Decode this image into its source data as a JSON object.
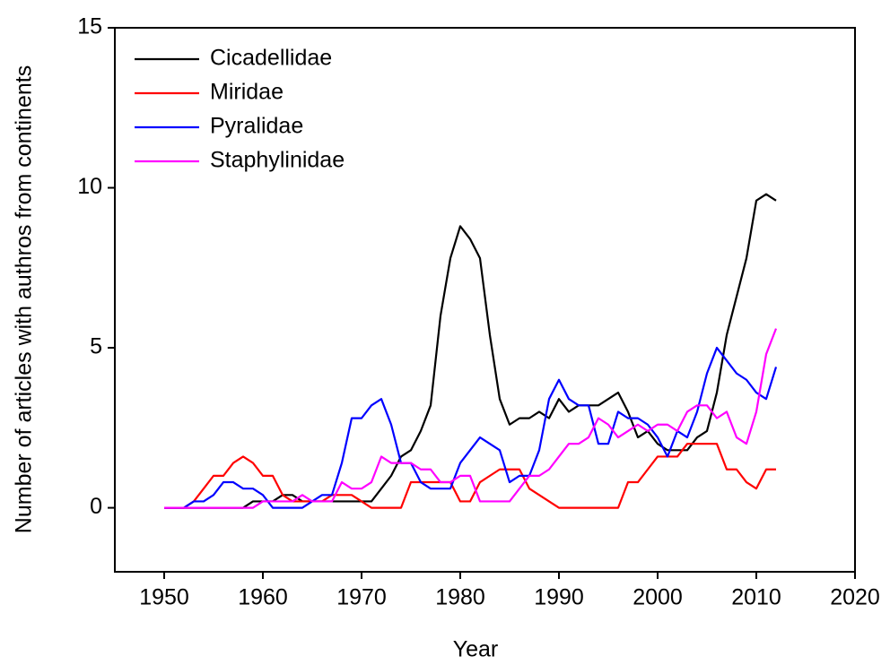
{
  "chart_data": {
    "type": "line",
    "xlabel": "Year",
    "ylabel": "Number of articles with authros from continents",
    "x": [
      1950,
      1951,
      1952,
      1953,
      1954,
      1955,
      1956,
      1957,
      1958,
      1959,
      1960,
      1961,
      1962,
      1963,
      1964,
      1965,
      1966,
      1967,
      1968,
      1969,
      1970,
      1971,
      1972,
      1973,
      1974,
      1975,
      1976,
      1977,
      1978,
      1979,
      1980,
      1981,
      1982,
      1983,
      1984,
      1985,
      1986,
      1987,
      1988,
      1989,
      1990,
      1991,
      1992,
      1993,
      1994,
      1995,
      1996,
      1997,
      1998,
      1999,
      2000,
      2001,
      2002,
      2003,
      2004,
      2005,
      2006,
      2007,
      2008,
      2009,
      2010,
      2011,
      2012
    ],
    "series": [
      {
        "name": "Cicadellidae",
        "color": "#000000",
        "values": [
          0,
          0,
          0,
          0,
          0,
          0,
          0,
          0,
          0,
          0.2,
          0.2,
          0.2,
          0.4,
          0.4,
          0.2,
          0.2,
          0.2,
          0.2,
          0.2,
          0.2,
          0.2,
          0.2,
          0.6,
          1.0,
          1.6,
          1.8,
          2.4,
          3.2,
          6.0,
          7.8,
          8.8,
          8.4,
          7.8,
          5.4,
          3.4,
          2.6,
          2.8,
          2.8,
          3.0,
          2.8,
          3.4,
          3.0,
          3.2,
          3.2,
          3.2,
          3.4,
          3.6,
          3.0,
          2.2,
          2.4,
          2.0,
          1.8,
          1.8,
          1.8,
          2.2,
          2.4,
          3.6,
          5.4,
          6.6,
          7.8,
          9.6,
          9.8,
          9.6
        ]
      },
      {
        "name": "Miridae",
        "color": "#ff0000",
        "values": [
          0,
          0,
          0,
          0.2,
          0.6,
          1.0,
          1.0,
          1.4,
          1.6,
          1.4,
          1.0,
          1.0,
          0.4,
          0.2,
          0.2,
          0.2,
          0.2,
          0.4,
          0.4,
          0.4,
          0.2,
          0,
          0,
          0,
          0,
          0.8,
          0.8,
          0.8,
          0.8,
          0.8,
          0.2,
          0.2,
          0.8,
          1.0,
          1.2,
          1.2,
          1.2,
          0.6,
          0.4,
          0.2,
          0,
          0,
          0,
          0,
          0,
          0,
          0,
          0.8,
          0.8,
          1.2,
          1.6,
          1.6,
          1.6,
          2.0,
          2.0,
          2.0,
          2.0,
          1.2,
          1.2,
          0.8,
          0.6,
          1.2,
          1.2
        ]
      },
      {
        "name": "Pyralidae",
        "color": "#0000ff",
        "values": [
          0,
          0,
          0,
          0.2,
          0.2,
          0.4,
          0.8,
          0.8,
          0.6,
          0.6,
          0.4,
          0,
          0,
          0,
          0,
          0.2,
          0.4,
          0.4,
          1.4,
          2.8,
          2.8,
          3.2,
          3.4,
          2.6,
          1.4,
          1.4,
          0.8,
          0.6,
          0.6,
          0.6,
          1.4,
          1.8,
          2.2,
          2.0,
          1.8,
          0.8,
          1.0,
          1.0,
          1.8,
          3.4,
          4.0,
          3.4,
          3.2,
          3.2,
          2.0,
          2.0,
          3.0,
          2.8,
          2.8,
          2.6,
          2.2,
          1.6,
          2.4,
          2.2,
          3.0,
          4.2,
          5.0,
          4.6,
          4.2,
          4.0,
          3.6,
          3.4,
          4.4
        ]
      },
      {
        "name": "Staphylinidae",
        "color": "#ff00ff",
        "values": [
          0,
          0,
          0,
          0,
          0,
          0,
          0,
          0,
          0,
          0,
          0.2,
          0.2,
          0.2,
          0.2,
          0.4,
          0.2,
          0.2,
          0.2,
          0.8,
          0.6,
          0.6,
          0.8,
          1.6,
          1.4,
          1.4,
          1.4,
          1.2,
          1.2,
          0.8,
          0.8,
          1.0,
          1.0,
          0.2,
          0.2,
          0.2,
          0.2,
          0.6,
          1.0,
          1.0,
          1.2,
          1.6,
          2.0,
          2.0,
          2.2,
          2.8,
          2.6,
          2.2,
          2.4,
          2.6,
          2.4,
          2.6,
          2.6,
          2.4,
          3.0,
          3.2,
          3.2,
          2.8,
          3.0,
          2.2,
          2.0,
          3.0,
          4.8,
          5.6
        ]
      }
    ],
    "xlim": [
      1945,
      2020
    ],
    "xticks": [
      1950,
      1960,
      1970,
      1980,
      1990,
      2000,
      2010,
      2020
    ],
    "ylim": [
      -2,
      15
    ],
    "yticks": [
      0,
      5,
      10,
      15
    ],
    "legend": "upper left",
    "grid": false
  }
}
